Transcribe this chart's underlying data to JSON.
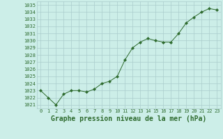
{
  "x": [
    0,
    1,
    2,
    3,
    4,
    5,
    6,
    7,
    8,
    9,
    10,
    11,
    12,
    13,
    14,
    15,
    16,
    17,
    18,
    19,
    20,
    21,
    22,
    23
  ],
  "y": [
    1023.0,
    1022.0,
    1021.0,
    1022.5,
    1023.0,
    1023.0,
    1022.8,
    1023.2,
    1024.0,
    1024.3,
    1025.0,
    1027.3,
    1029.0,
    1029.8,
    1030.3,
    1030.0,
    1029.8,
    1029.8,
    1031.0,
    1032.5,
    1033.3,
    1034.0,
    1034.5,
    1034.3
  ],
  "line_color": "#2d6a2d",
  "marker": "D",
  "marker_size": 2.2,
  "bg_color": "#cceee8",
  "grid_color": "#aacccc",
  "text_color": "#2d6a2d",
  "xlabel": "Graphe pression niveau de la mer (hPa)",
  "ylim": [
    1020.5,
    1035.5
  ],
  "yticks": [
    1021,
    1022,
    1023,
    1024,
    1025,
    1026,
    1027,
    1028,
    1029,
    1030,
    1031,
    1032,
    1033,
    1034,
    1035
  ],
  "xticks": [
    0,
    1,
    2,
    3,
    4,
    5,
    6,
    7,
    8,
    9,
    10,
    11,
    12,
    13,
    14,
    15,
    16,
    17,
    18,
    19,
    20,
    21,
    22,
    23
  ],
  "tick_fontsize": 5.0,
  "xlabel_fontsize": 7.0
}
